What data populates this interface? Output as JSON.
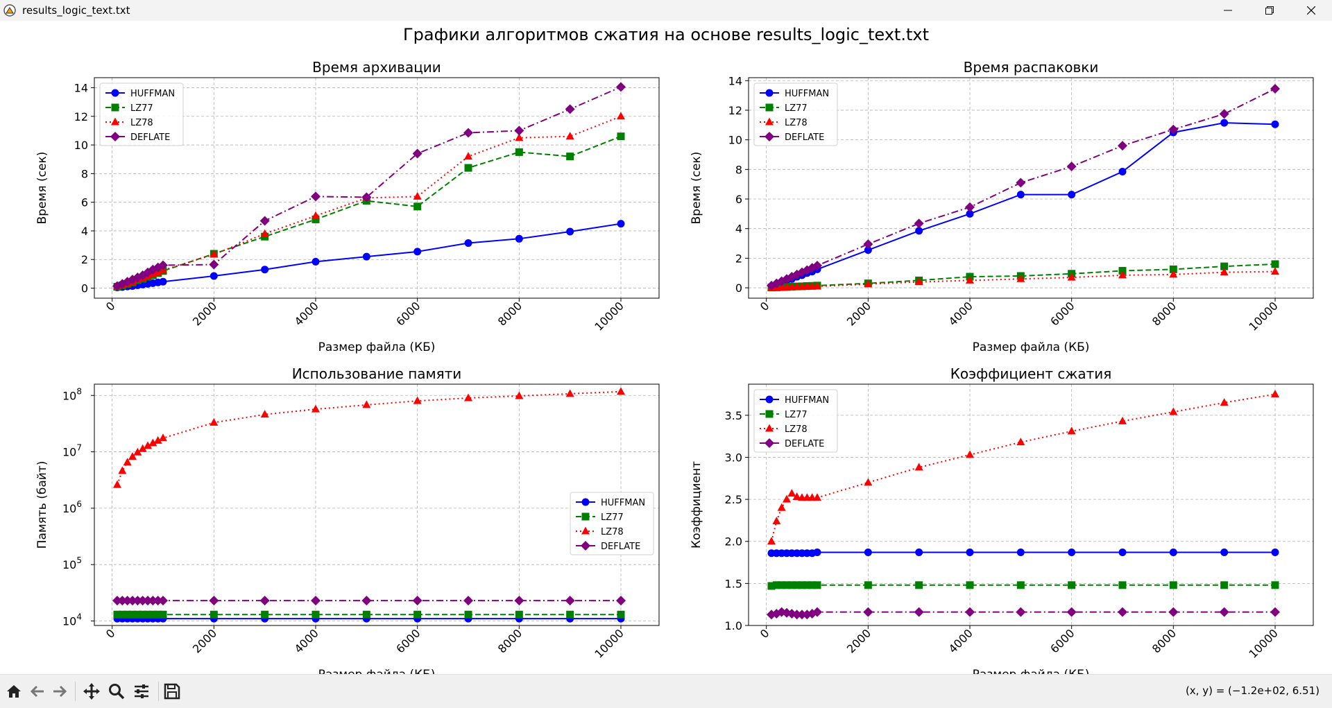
{
  "window": {
    "title": "results_logic_text.txt",
    "controls": [
      "minimize",
      "restore",
      "close"
    ]
  },
  "figure": {
    "suptitle": "Графики алгоритмов сжатия на основе results_logic_text.txt"
  },
  "toolbar": {
    "buttons": [
      "home-icon",
      "back-icon",
      "forward-icon",
      "pan-icon",
      "zoom-icon",
      "configure-subplots-icon",
      "save-icon"
    ],
    "coordinates": "(x, y) = (−1.2e+02, 6.51)"
  },
  "series_style": [
    {
      "name": "HUFFMAN",
      "color": "#0000ff",
      "marker": "circle",
      "dash": "solid"
    },
    {
      "name": "LZ77",
      "color": "#008000",
      "marker": "square",
      "dash": "dashed"
    },
    {
      "name": "LZ78",
      "color": "#ff0000",
      "marker": "triangle",
      "dash": "dotted"
    },
    {
      "name": "DEFLATE",
      "color": "#800080",
      "marker": "diamond",
      "dash": "dashdot"
    }
  ],
  "chart_data": [
    {
      "type": "line",
      "title": "Время архивации",
      "xlabel": "Размер файла (КБ)",
      "ylabel": "Время (сек)",
      "xlim": [
        -350,
        10750
      ],
      "ylim": [
        -0.7,
        14.7
      ],
      "xticks": [
        0,
        2000,
        4000,
        6000,
        8000,
        10000
      ],
      "yticks": [
        0,
        2,
        4,
        6,
        8,
        10,
        12,
        14
      ],
      "yscale": "linear",
      "grid": true,
      "legend": "upper-left",
      "x": [
        100,
        200,
        300,
        400,
        500,
        600,
        700,
        800,
        900,
        1000,
        2000,
        3000,
        4000,
        5000,
        6000,
        7000,
        8000,
        9000,
        10000
      ],
      "series": [
        {
          "name": "HUFFMAN",
          "values": [
            0.05,
            0.08,
            0.12,
            0.15,
            0.2,
            0.25,
            0.3,
            0.35,
            0.4,
            0.45,
            0.85,
            1.3,
            1.85,
            2.2,
            2.55,
            3.15,
            3.45,
            3.95,
            4.5
          ]
        },
        {
          "name": "LZ77",
          "values": [
            0.1,
            0.2,
            0.3,
            0.4,
            0.55,
            0.65,
            0.8,
            0.9,
            1.05,
            1.2,
            2.4,
            3.6,
            4.8,
            6.1,
            5.7,
            8.4,
            9.5,
            9.2,
            10.6
          ]
        },
        {
          "name": "LZ78",
          "values": [
            0.1,
            0.2,
            0.3,
            0.45,
            0.6,
            0.7,
            0.85,
            1.0,
            1.1,
            1.25,
            2.35,
            3.8,
            5.05,
            6.3,
            6.4,
            9.2,
            10.5,
            10.6,
            12.0
          ]
        },
        {
          "name": "DEFLATE",
          "values": [
            0.15,
            0.3,
            0.45,
            0.6,
            0.75,
            0.9,
            1.1,
            1.3,
            1.45,
            1.6,
            1.65,
            4.7,
            6.4,
            6.35,
            9.4,
            10.85,
            11.0,
            12.5,
            14.05
          ]
        }
      ]
    },
    {
      "type": "line",
      "title": "Время распаковки",
      "xlabel": "Размер файла (КБ)",
      "ylabel": "Время (сек)",
      "xlim": [
        -350,
        10750
      ],
      "ylim": [
        -0.7,
        14.2
      ],
      "xticks": [
        0,
        2000,
        4000,
        6000,
        8000,
        10000
      ],
      "yticks": [
        0,
        2,
        4,
        6,
        8,
        10,
        12,
        14
      ],
      "yscale": "linear",
      "grid": true,
      "legend": "upper-left",
      "x": [
        100,
        200,
        300,
        400,
        500,
        600,
        700,
        800,
        900,
        1000,
        2000,
        3000,
        4000,
        5000,
        6000,
        7000,
        8000,
        9000,
        10000
      ],
      "series": [
        {
          "name": "HUFFMAN",
          "values": [
            0.1,
            0.2,
            0.35,
            0.5,
            0.6,
            0.75,
            0.85,
            1.0,
            1.1,
            1.25,
            2.55,
            3.85,
            5.0,
            6.3,
            6.3,
            7.85,
            10.5,
            11.15,
            11.05
          ]
        },
        {
          "name": "LZ77",
          "values": [
            0.02,
            0.03,
            0.05,
            0.06,
            0.08,
            0.09,
            0.1,
            0.12,
            0.13,
            0.15,
            0.3,
            0.5,
            0.75,
            0.8,
            0.95,
            1.15,
            1.25,
            1.45,
            1.6
          ]
        },
        {
          "name": "LZ78",
          "values": [
            0.01,
            0.02,
            0.03,
            0.04,
            0.05,
            0.06,
            0.07,
            0.08,
            0.09,
            0.1,
            0.25,
            0.4,
            0.5,
            0.6,
            0.7,
            0.85,
            0.9,
            1.05,
            1.1
          ]
        },
        {
          "name": "DEFLATE",
          "values": [
            0.15,
            0.3,
            0.45,
            0.6,
            0.75,
            0.9,
            1.05,
            1.2,
            1.35,
            1.5,
            2.95,
            4.35,
            5.45,
            7.1,
            8.2,
            9.6,
            10.7,
            11.75,
            13.45
          ]
        }
      ]
    },
    {
      "type": "line",
      "title": "Использование памяти",
      "xlabel": "Размер файла (КБ)",
      "ylabel": "Память (байт)",
      "xlim": [
        -350,
        10750
      ],
      "ylim": [
        3.92,
        8.2
      ],
      "xticks": [
        0,
        2000,
        4000,
        6000,
        8000,
        10000
      ],
      "yticks": [
        4,
        5,
        6,
        7,
        8
      ],
      "ytick_labels": [
        "10",
        "10",
        "10",
        "10",
        "10"
      ],
      "ytick_exponents": [
        "4",
        "5",
        "6",
        "7",
        "8"
      ],
      "yscale": "log",
      "grid": true,
      "legend": "center-right",
      "x": [
        100,
        200,
        300,
        400,
        500,
        600,
        700,
        800,
        900,
        1000,
        2000,
        3000,
        4000,
        5000,
        6000,
        7000,
        8000,
        9000,
        10000
      ],
      "series": [
        {
          "name": "HUFFMAN",
          "values": [
            11000,
            11000,
            11000,
            11000,
            11000,
            11000,
            11000,
            11000,
            11000,
            11000,
            11000,
            11000,
            11000,
            11000,
            11000,
            11000,
            11000,
            11000,
            11000
          ]
        },
        {
          "name": "LZ77",
          "values": [
            13000,
            13000,
            13000,
            13000,
            13000,
            13000,
            13000,
            13000,
            13000,
            13000,
            13000,
            13000,
            13000,
            13000,
            13000,
            13000,
            13000,
            13000,
            13000
          ]
        },
        {
          "name": "LZ78",
          "values": [
            2600000,
            4600000,
            6500000,
            8200000,
            9800000,
            11300000,
            12800000,
            14300000,
            15800000,
            17500000,
            33000000,
            46000000,
            57000000,
            68000000,
            80000000,
            90000000,
            98000000,
            107000000,
            117000000
          ]
        },
        {
          "name": "DEFLATE",
          "values": [
            23000,
            23000,
            23000,
            23000,
            23000,
            23000,
            23000,
            23000,
            23000,
            23000,
            23000,
            23000,
            23000,
            23000,
            23000,
            23000,
            23000,
            23000,
            23000
          ]
        }
      ]
    },
    {
      "type": "line",
      "title": "Коэффициент сжатия",
      "xlabel": "Размер файла (КБ)",
      "ylabel": "Коэффициент",
      "xlim": [
        -350,
        10750
      ],
      "ylim": [
        1.0,
        3.87
      ],
      "xticks": [
        0,
        2000,
        4000,
        6000,
        8000,
        10000
      ],
      "yticks": [
        1.0,
        1.5,
        2.0,
        2.5,
        3.0,
        3.5
      ],
      "yscale": "linear",
      "grid": true,
      "legend": "upper-left",
      "x": [
        100,
        200,
        300,
        400,
        500,
        600,
        700,
        800,
        900,
        1000,
        2000,
        3000,
        4000,
        5000,
        6000,
        7000,
        8000,
        9000,
        10000
      ],
      "series": [
        {
          "name": "HUFFMAN",
          "values": [
            1.86,
            1.86,
            1.86,
            1.86,
            1.86,
            1.86,
            1.86,
            1.86,
            1.86,
            1.87,
            1.87,
            1.87,
            1.87,
            1.87,
            1.87,
            1.87,
            1.87,
            1.87,
            1.87
          ]
        },
        {
          "name": "LZ77",
          "values": [
            1.47,
            1.48,
            1.48,
            1.48,
            1.48,
            1.48,
            1.48,
            1.48,
            1.48,
            1.48,
            1.48,
            1.48,
            1.48,
            1.48,
            1.48,
            1.48,
            1.48,
            1.48,
            1.48
          ]
        },
        {
          "name": "LZ78",
          "values": [
            2.0,
            2.24,
            2.4,
            2.5,
            2.57,
            2.53,
            2.52,
            2.52,
            2.52,
            2.52,
            2.7,
            2.88,
            3.03,
            3.18,
            3.31,
            3.43,
            3.54,
            3.65,
            3.75
          ]
        },
        {
          "name": "DEFLATE",
          "values": [
            1.13,
            1.14,
            1.16,
            1.15,
            1.14,
            1.13,
            1.13,
            1.13,
            1.14,
            1.16,
            1.16,
            1.16,
            1.16,
            1.16,
            1.16,
            1.16,
            1.16,
            1.16,
            1.16
          ]
        }
      ]
    }
  ]
}
